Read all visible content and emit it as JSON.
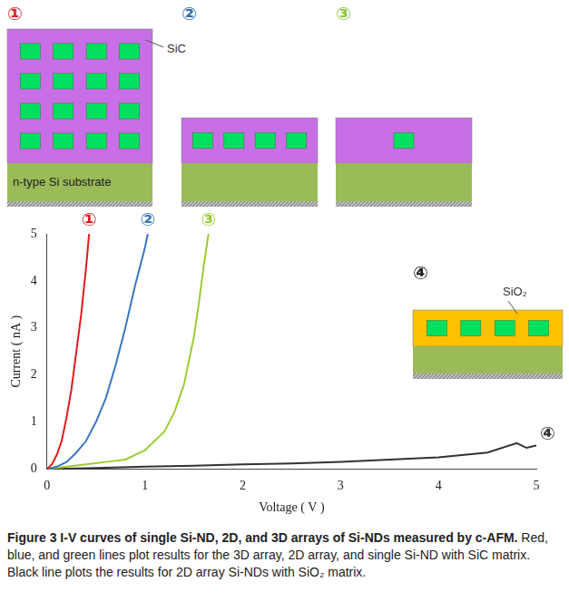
{
  "diagrams": [
    {
      "label": "①",
      "label_color": "#d9282f",
      "matrix": "SiC",
      "matrix_label": "SiC",
      "substrate_label": "n-type Si substrate",
      "dot_rows": 4,
      "dot_cols": 4
    },
    {
      "label": "②",
      "label_color": "#2e6fb5",
      "matrix": "SiC",
      "dot_rows": 1,
      "dot_cols": 4
    },
    {
      "label": "③",
      "label_color": "#8dc63f",
      "matrix": "SiC",
      "dot_rows": 1,
      "dot_cols": 1
    },
    {
      "label": "④",
      "label_color": "#222222",
      "matrix": "SiO₂",
      "matrix_label": "SiO₂",
      "dot_rows": 1,
      "dot_cols": 4
    }
  ],
  "chart_data": {
    "type": "line",
    "x_label": "Voltage ( V )",
    "y_label": "Current ( nA )",
    "xlim": [
      0,
      5
    ],
    "xticks": [
      0,
      1,
      2,
      3,
      4,
      5
    ],
    "ylim": [
      0,
      5
    ],
    "yticks": [
      0,
      1,
      2,
      3,
      4,
      5
    ],
    "grid": false,
    "series": [
      {
        "name": "①",
        "color": "#e01b1b",
        "x": [
          0,
          0.05,
          0.1,
          0.15,
          0.2,
          0.25,
          0.3,
          0.35,
          0.4,
          0.43
        ],
        "values": [
          0,
          0.1,
          0.3,
          0.6,
          1.1,
          1.7,
          2.5,
          3.3,
          4.3,
          5
        ]
      },
      {
        "name": "②",
        "color": "#3a78c0",
        "x": [
          0,
          0.1,
          0.2,
          0.3,
          0.4,
          0.5,
          0.6,
          0.7,
          0.8,
          0.9,
          1.0,
          1.03
        ],
        "values": [
          0,
          0.05,
          0.15,
          0.35,
          0.6,
          1.0,
          1.5,
          2.2,
          3.0,
          3.9,
          4.7,
          5
        ]
      },
      {
        "name": "③",
        "color": "#9acd32",
        "x": [
          0,
          0.2,
          0.4,
          0.6,
          0.8,
          1.0,
          1.2,
          1.3,
          1.4,
          1.5,
          1.55,
          1.6,
          1.65
        ],
        "values": [
          0,
          0.05,
          0.1,
          0.15,
          0.2,
          0.4,
          0.8,
          1.2,
          1.8,
          2.8,
          3.5,
          4.3,
          5
        ]
      },
      {
        "name": "④",
        "color": "#333333",
        "x": [
          0,
          0.5,
          1,
          1.5,
          2,
          2.5,
          3,
          3.5,
          4,
          4.5,
          4.8,
          4.9,
          5
        ],
        "values": [
          0,
          0.02,
          0.05,
          0.07,
          0.1,
          0.12,
          0.15,
          0.2,
          0.25,
          0.35,
          0.55,
          0.45,
          0.5
        ]
      }
    ]
  },
  "caption": {
    "label": "Figure 3",
    "title": "I-V curves of single Si-ND, 2D, and 3D arrays of Si-NDs measured by c-AFM.",
    "text": "Red, blue, and green lines plot results for the 3D array, 2D array, and single Si-ND with SiC matrix. Black line plots the results for 2D array Si-NDs with SiO₂ matrix."
  }
}
